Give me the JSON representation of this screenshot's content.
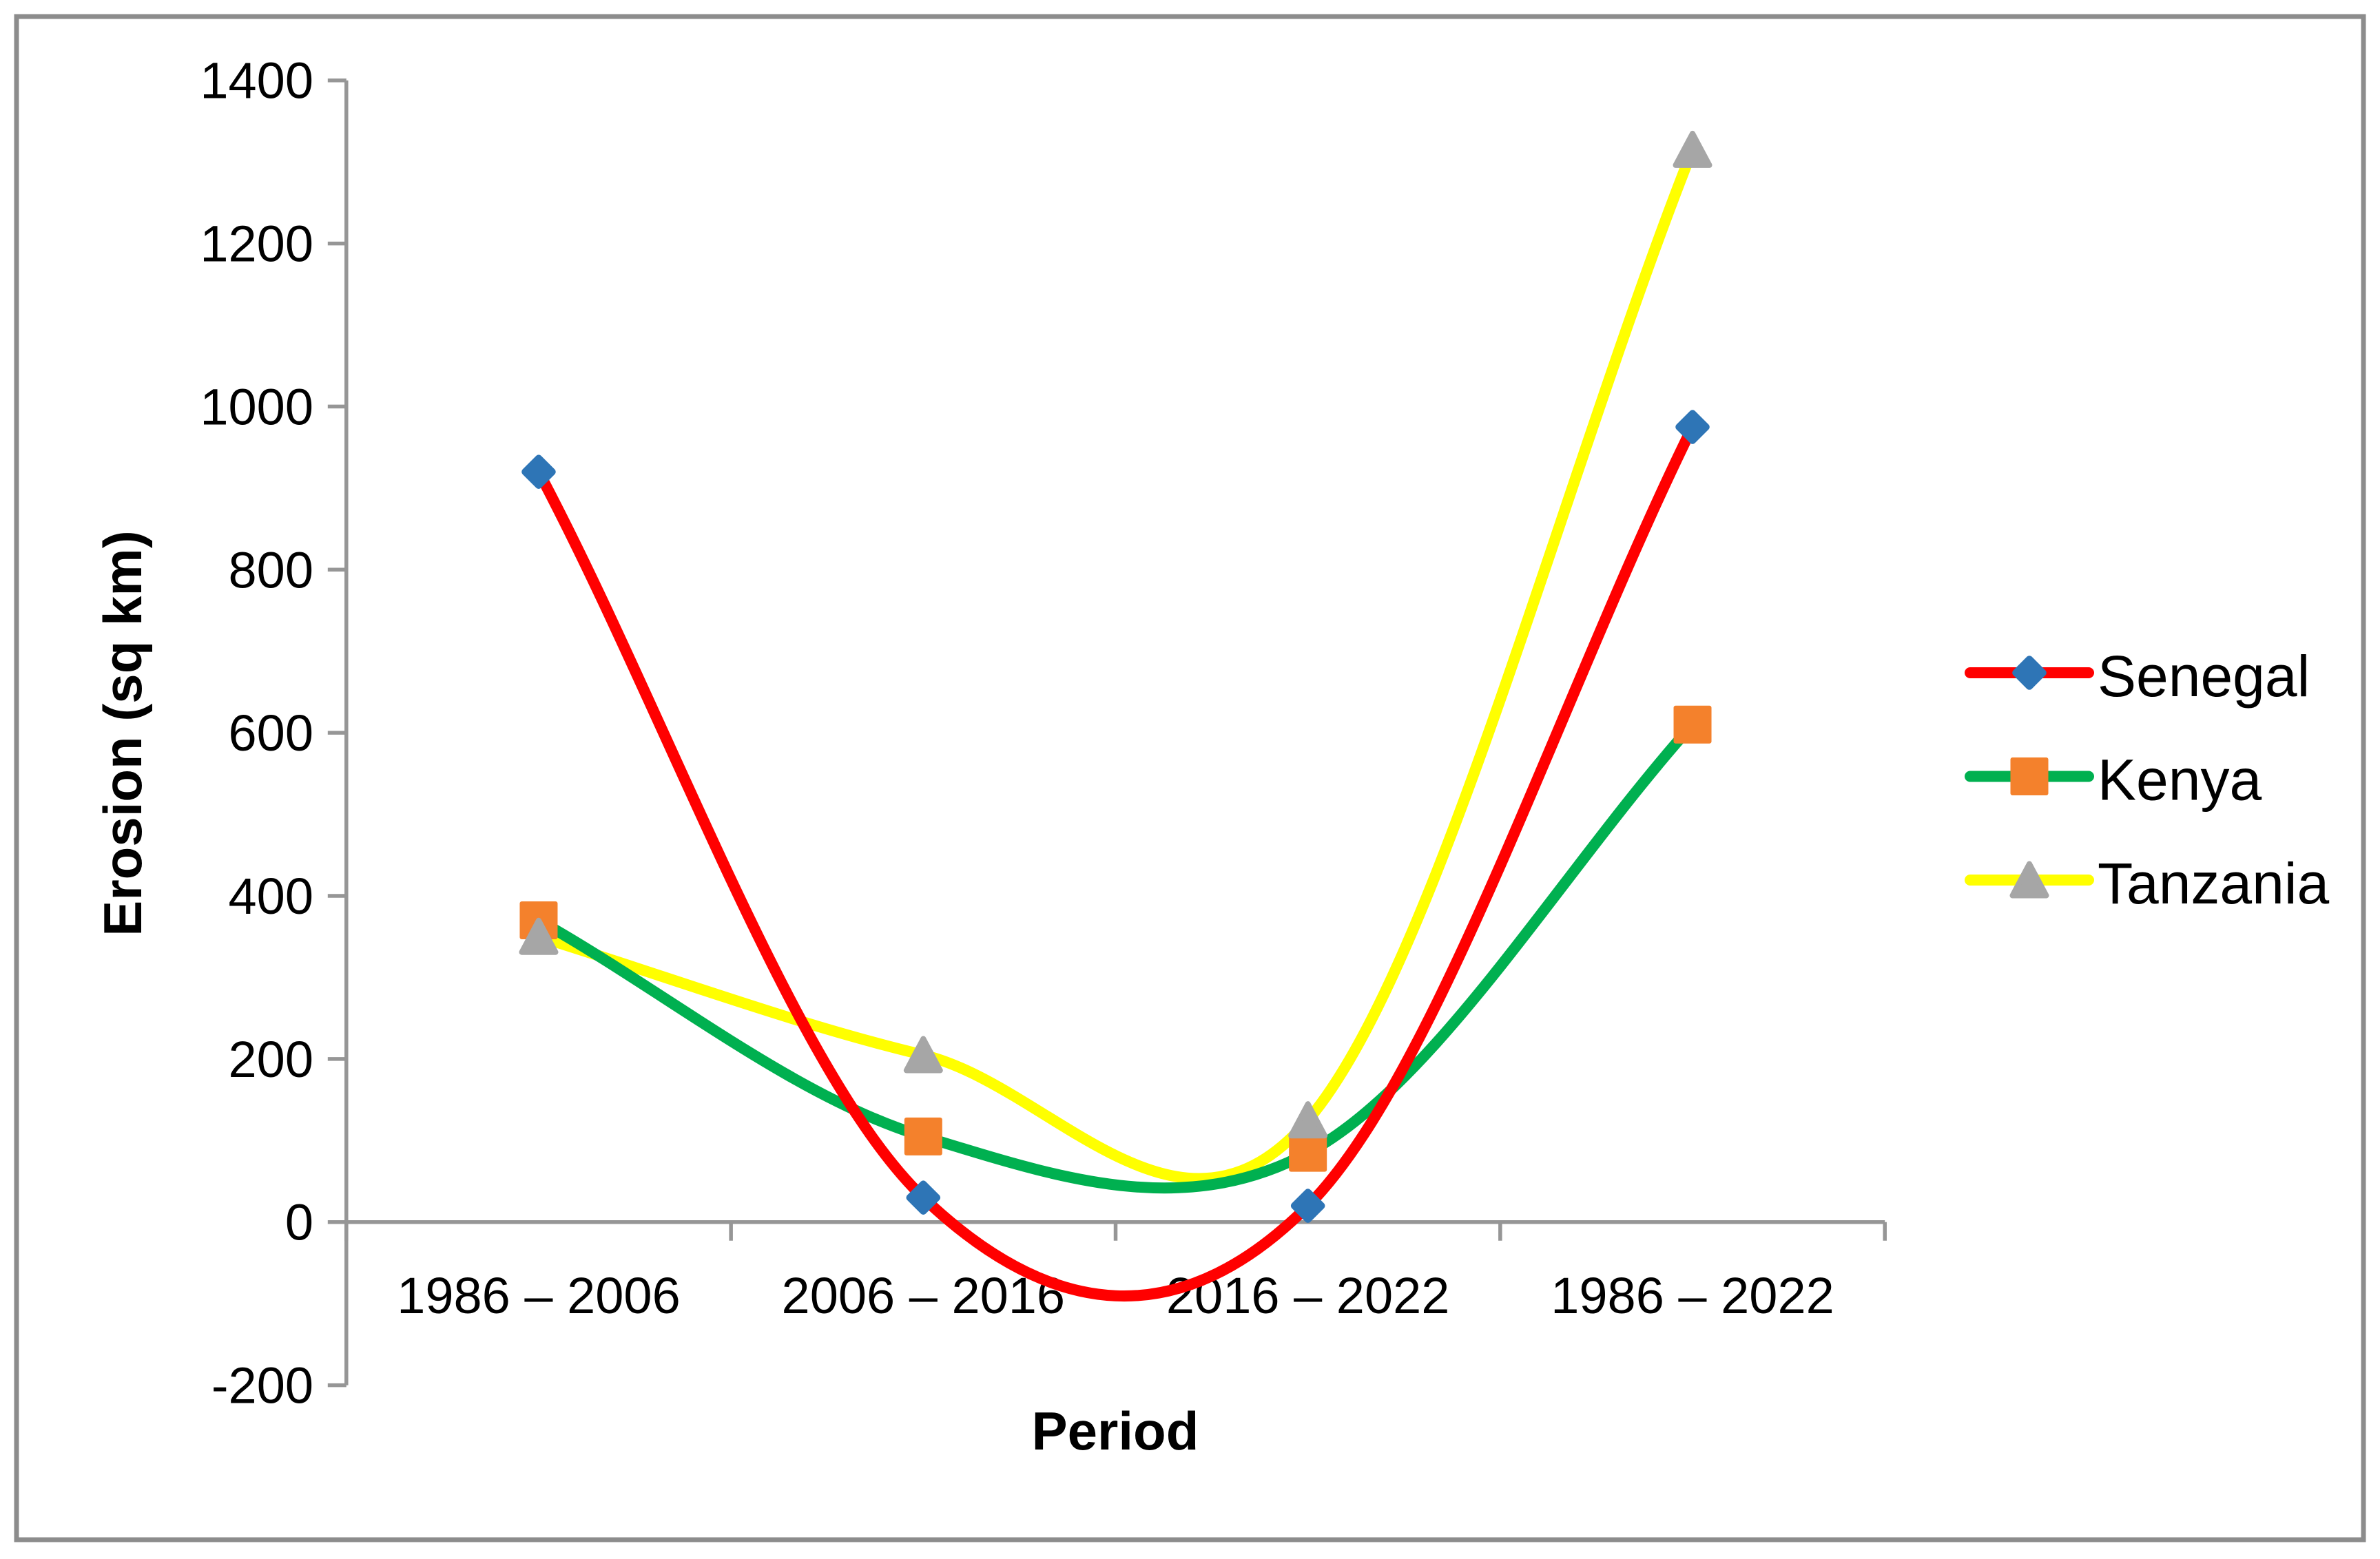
{
  "chart_data": {
    "type": "line",
    "title": "",
    "categories": [
      "1986 – 2006",
      "2006 – 2016",
      "2016 – 2022",
      "1986 – 2022"
    ],
    "series": [
      {
        "name": "Senegal",
        "values": [
          920,
          30,
          20,
          975
        ],
        "line_color": "#FF0000",
        "marker": "diamond",
        "marker_color": "#2E75B6"
      },
      {
        "name": "Kenya",
        "values": [
          370,
          105,
          85,
          610
        ],
        "line_color": "#00B050",
        "marker": "square",
        "marker_color": "#F4812C"
      },
      {
        "name": "Tanzania",
        "values": [
          350,
          205,
          125,
          1315
        ],
        "line_color": "#FFFF00",
        "marker": "triangle",
        "marker_color": "#A6A6A6"
      }
    ],
    "xlabel": "Period",
    "ylabel": "Erosion (sq km)",
    "ylim": [
      -200,
      1400
    ],
    "y_ticks": [
      1400,
      1200,
      1000,
      800,
      600,
      400,
      200,
      0,
      -200
    ],
    "y_tick_step": 200,
    "grid": false,
    "smooth": true,
    "legend_position": "right",
    "axis_color": "#969696",
    "frame_color": "#8C8C8C",
    "text_color": "#000000",
    "background_color": "#FFFFFF"
  }
}
